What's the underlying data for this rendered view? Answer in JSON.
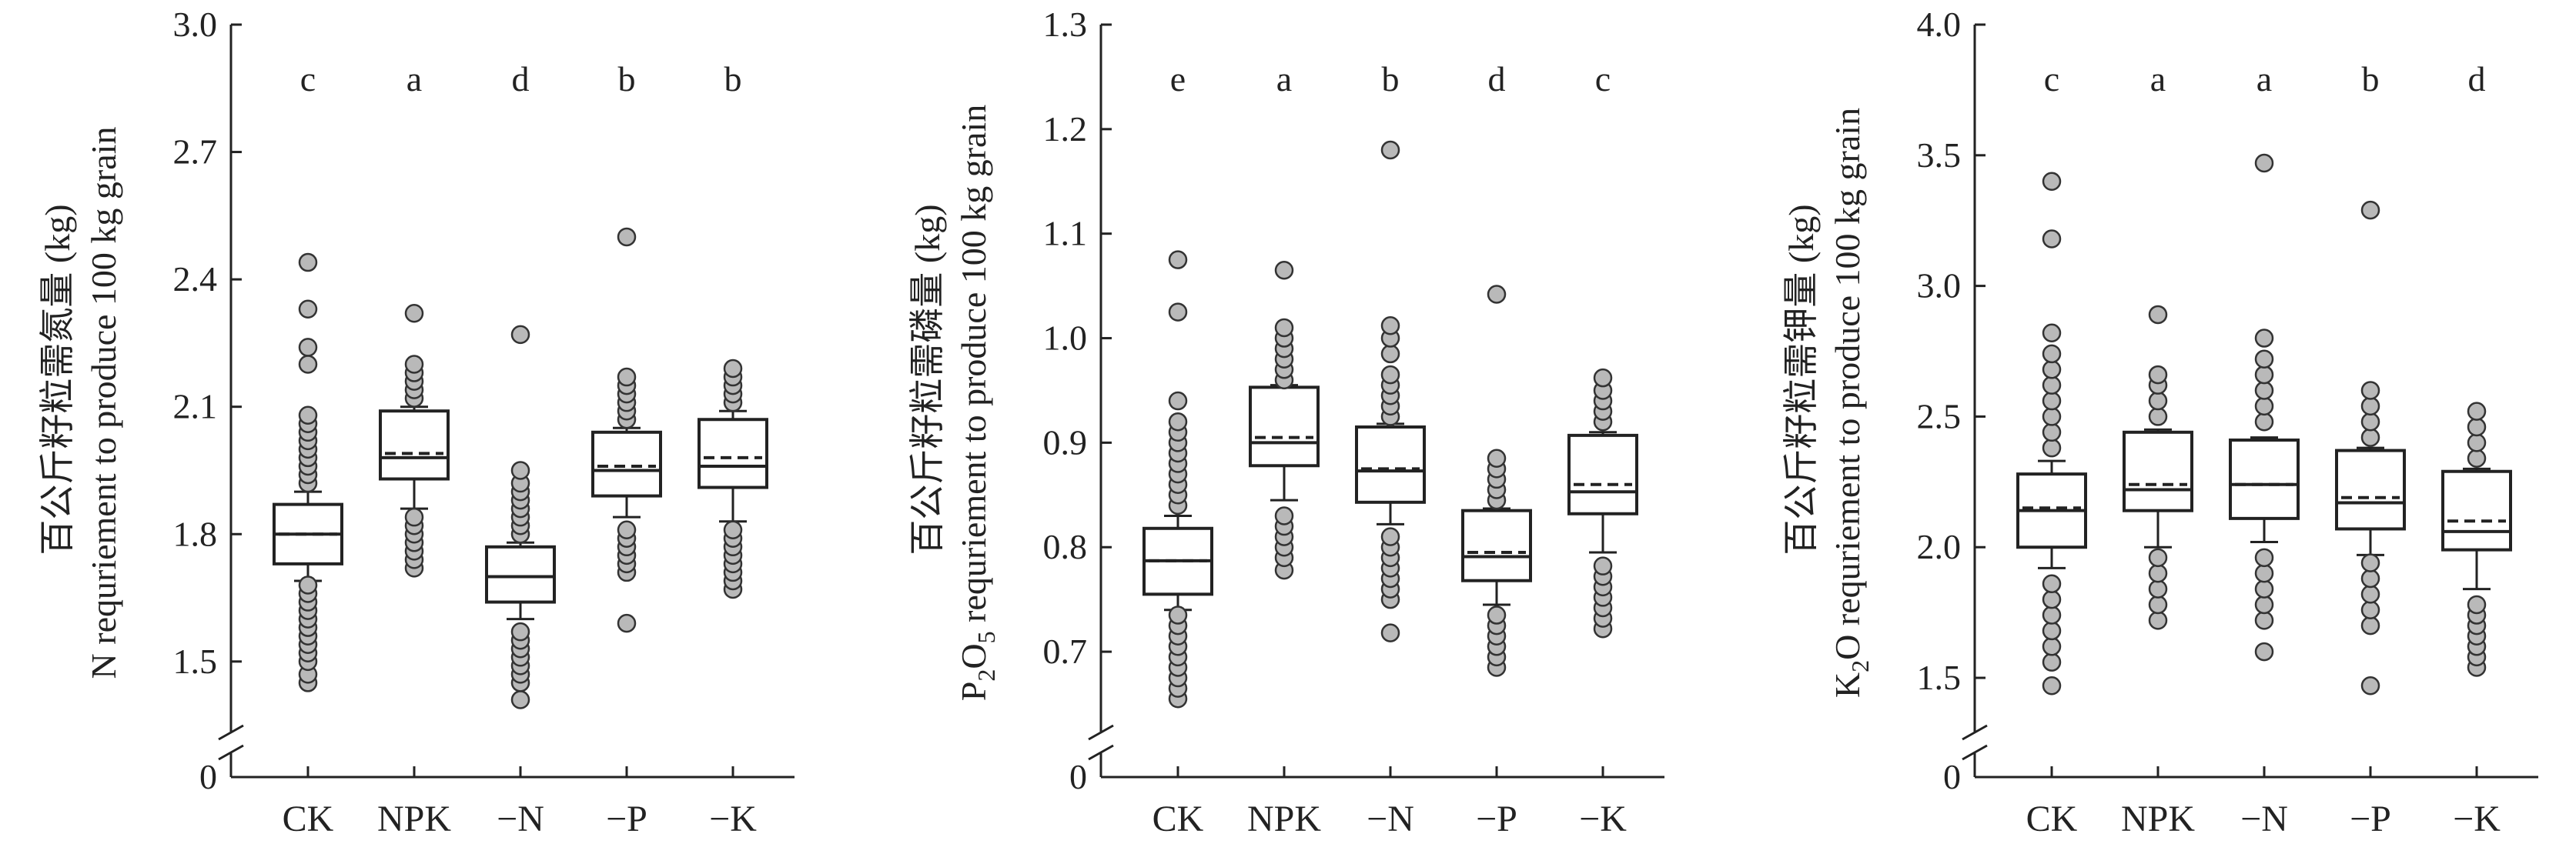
{
  "chart_data": [
    {
      "type": "box",
      "ylabel_line1": "百公斤籽粒需氮量 (kg)",
      "ylabel_line2": "N requriement to produce 100 kg grain",
      "ylim": [
        1.4,
        3.0
      ],
      "yticks": [
        1.5,
        1.8,
        2.1,
        2.4,
        2.7,
        3.0
      ],
      "ytick_labels": [
        "1.5",
        "1.8",
        "2.1",
        "2.4",
        "2.7",
        "3.0"
      ],
      "axis_break": true,
      "zero_label": "0",
      "categories": [
        "CK",
        "NPK",
        "−N",
        "−P",
        "−K"
      ],
      "letters": [
        "c",
        "a",
        "d",
        "b",
        "b"
      ],
      "boxes": [
        {
          "q1": 1.73,
          "median": 1.8,
          "q3": 1.87,
          "mean": 1.8,
          "whisker_low": 1.69,
          "whisker_high": 1.9,
          "outliers": [
            1.45,
            1.47,
            1.5,
            1.52,
            1.54,
            1.56,
            1.58,
            1.6,
            1.62,
            1.64,
            1.66,
            1.68,
            1.92,
            1.94,
            1.96,
            1.98,
            2.0,
            2.02,
            2.04,
            2.06,
            2.08,
            2.2,
            2.24,
            2.33,
            2.44
          ]
        },
        {
          "q1": 1.93,
          "median": 1.98,
          "q3": 2.09,
          "mean": 1.99,
          "whisker_low": 1.86,
          "whisker_high": 2.1,
          "outliers": [
            1.72,
            1.74,
            1.76,
            1.78,
            1.8,
            1.82,
            1.84,
            2.12,
            2.14,
            2.16,
            2.18,
            2.2,
            2.32
          ]
        },
        {
          "q1": 1.64,
          "median": 1.7,
          "q3": 1.77,
          "mean": 1.7,
          "whisker_low": 1.6,
          "whisker_high": 1.78,
          "outliers": [
            1.41,
            1.45,
            1.47,
            1.49,
            1.51,
            1.53,
            1.55,
            1.57,
            1.8,
            1.82,
            1.84,
            1.86,
            1.88,
            1.9,
            1.92,
            1.95,
            2.27
          ]
        },
        {
          "q1": 1.89,
          "median": 1.95,
          "q3": 2.04,
          "mean": 1.96,
          "whisker_low": 1.84,
          "whisker_high": 2.05,
          "outliers": [
            1.59,
            1.71,
            1.73,
            1.75,
            1.77,
            1.79,
            1.81,
            2.07,
            2.09,
            2.11,
            2.13,
            2.15,
            2.17,
            2.5
          ]
        },
        {
          "q1": 1.91,
          "median": 1.96,
          "q3": 2.07,
          "mean": 1.98,
          "whisker_low": 1.83,
          "whisker_high": 2.09,
          "outliers": [
            1.67,
            1.69,
            1.71,
            1.73,
            1.75,
            1.77,
            1.79,
            1.81,
            2.11,
            2.13,
            2.15,
            2.17,
            2.19
          ]
        }
      ]
    },
    {
      "type": "box",
      "ylabel_line1": "百公斤籽粒需磷量 (kg)",
      "ylabel_line2_pre": "P",
      "ylabel_line2_sub1": "2",
      "ylabel_line2_mid": "O",
      "ylabel_line2_sub2": "5",
      "ylabel_line2_post": " requriement to produce 100 kg grain",
      "ylim": [
        0.65,
        1.3
      ],
      "yticks": [
        0.7,
        0.8,
        0.9,
        1.0,
        1.1,
        1.2,
        1.3
      ],
      "ytick_labels": [
        "0.7",
        "0.8",
        "0.9",
        "1.0",
        "1.1",
        "1.2",
        "1.3"
      ],
      "axis_break": true,
      "zero_label": "0",
      "categories": [
        "CK",
        "NPK",
        "−N",
        "−P",
        "−K"
      ],
      "letters": [
        "e",
        "a",
        "b",
        "d",
        "c"
      ],
      "boxes": [
        {
          "q1": 0.755,
          "median": 0.787,
          "q3": 0.818,
          "mean": 0.787,
          "whisker_low": 0.74,
          "whisker_high": 0.83,
          "outliers": [
            0.655,
            0.665,
            0.675,
            0.685,
            0.695,
            0.705,
            0.715,
            0.725,
            0.735,
            0.84,
            0.85,
            0.86,
            0.87,
            0.88,
            0.89,
            0.9,
            0.91,
            0.92,
            0.94,
            1.025,
            1.075
          ]
        },
        {
          "q1": 0.878,
          "median": 0.9,
          "q3": 0.953,
          "mean": 0.905,
          "whisker_low": 0.845,
          "whisker_high": 0.955,
          "outliers": [
            0.778,
            0.79,
            0.8,
            0.81,
            0.82,
            0.83,
            0.96,
            0.97,
            0.98,
            0.99,
            1.0,
            1.01,
            1.065
          ]
        },
        {
          "q1": 0.843,
          "median": 0.873,
          "q3": 0.915,
          "mean": 0.875,
          "whisker_low": 0.822,
          "whisker_high": 0.918,
          "outliers": [
            0.718,
            0.75,
            0.76,
            0.77,
            0.78,
            0.79,
            0.8,
            0.81,
            0.925,
            0.935,
            0.945,
            0.955,
            0.965,
            0.985,
            1.0,
            1.012,
            1.18
          ]
        },
        {
          "q1": 0.768,
          "median": 0.791,
          "q3": 0.835,
          "mean": 0.795,
          "whisker_low": 0.745,
          "whisker_high": 0.837,
          "outliers": [
            0.685,
            0.695,
            0.705,
            0.715,
            0.725,
            0.735,
            0.845,
            0.855,
            0.865,
            0.875,
            0.885,
            1.042
          ]
        },
        {
          "q1": 0.832,
          "median": 0.853,
          "q3": 0.907,
          "mean": 0.86,
          "whisker_low": 0.795,
          "whisker_high": 0.91,
          "outliers": [
            0.722,
            0.732,
            0.742,
            0.752,
            0.762,
            0.772,
            0.782,
            0.92,
            0.93,
            0.94,
            0.95,
            0.962
          ]
        }
      ]
    },
    {
      "type": "box",
      "ylabel_line1": "百公斤籽粒需钾量 (kg)",
      "ylabel_line2_pre": "K",
      "ylabel_line2_sub1": "2",
      "ylabel_line2_mid": "O",
      "ylabel_line2_sub2": "",
      "ylabel_line2_post": " requriement to produce 100 kg grain",
      "ylim": [
        1.4,
        4.0
      ],
      "yticks": [
        1.5,
        2.0,
        2.5,
        3.0,
        3.5,
        4.0
      ],
      "ytick_labels": [
        "1.5",
        "2.0",
        "2.5",
        "3.0",
        "3.5",
        "4.0"
      ],
      "axis_break": true,
      "zero_label": "0",
      "categories": [
        "CK",
        "NPK",
        "−N",
        "−P",
        "−K"
      ],
      "letters": [
        "c",
        "a",
        "a",
        "b",
        "d"
      ],
      "boxes": [
        {
          "q1": 2.0,
          "median": 2.14,
          "q3": 2.28,
          "mean": 2.15,
          "whisker_low": 1.92,
          "whisker_high": 2.33,
          "outliers": [
            1.47,
            1.56,
            1.62,
            1.68,
            1.74,
            1.8,
            1.86,
            2.38,
            2.44,
            2.5,
            2.56,
            2.62,
            2.68,
            2.74,
            2.82,
            3.18,
            3.4
          ]
        },
        {
          "q1": 2.14,
          "median": 2.22,
          "q3": 2.44,
          "mean": 2.24,
          "whisker_low": 2.0,
          "whisker_high": 2.45,
          "outliers": [
            1.72,
            1.78,
            1.84,
            1.9,
            1.96,
            2.5,
            2.56,
            2.62,
            2.66,
            2.89
          ]
        },
        {
          "q1": 2.11,
          "median": 2.24,
          "q3": 2.41,
          "mean": 2.24,
          "whisker_low": 2.02,
          "whisker_high": 2.42,
          "outliers": [
            1.6,
            1.72,
            1.78,
            1.84,
            1.9,
            1.96,
            2.48,
            2.54,
            2.6,
            2.66,
            2.72,
            2.8,
            3.47
          ]
        },
        {
          "q1": 2.07,
          "median": 2.17,
          "q3": 2.37,
          "mean": 2.19,
          "whisker_low": 1.97,
          "whisker_high": 2.38,
          "outliers": [
            1.47,
            1.7,
            1.76,
            1.82,
            1.88,
            1.94,
            2.42,
            2.48,
            2.54,
            2.6,
            3.29
          ]
        },
        {
          "q1": 1.99,
          "median": 2.06,
          "q3": 2.29,
          "mean": 2.1,
          "whisker_low": 1.84,
          "whisker_high": 2.3,
          "outliers": [
            1.54,
            1.58,
            1.62,
            1.66,
            1.7,
            1.74,
            1.78,
            2.34,
            2.4,
            2.46,
            2.52
          ]
        }
      ]
    }
  ]
}
